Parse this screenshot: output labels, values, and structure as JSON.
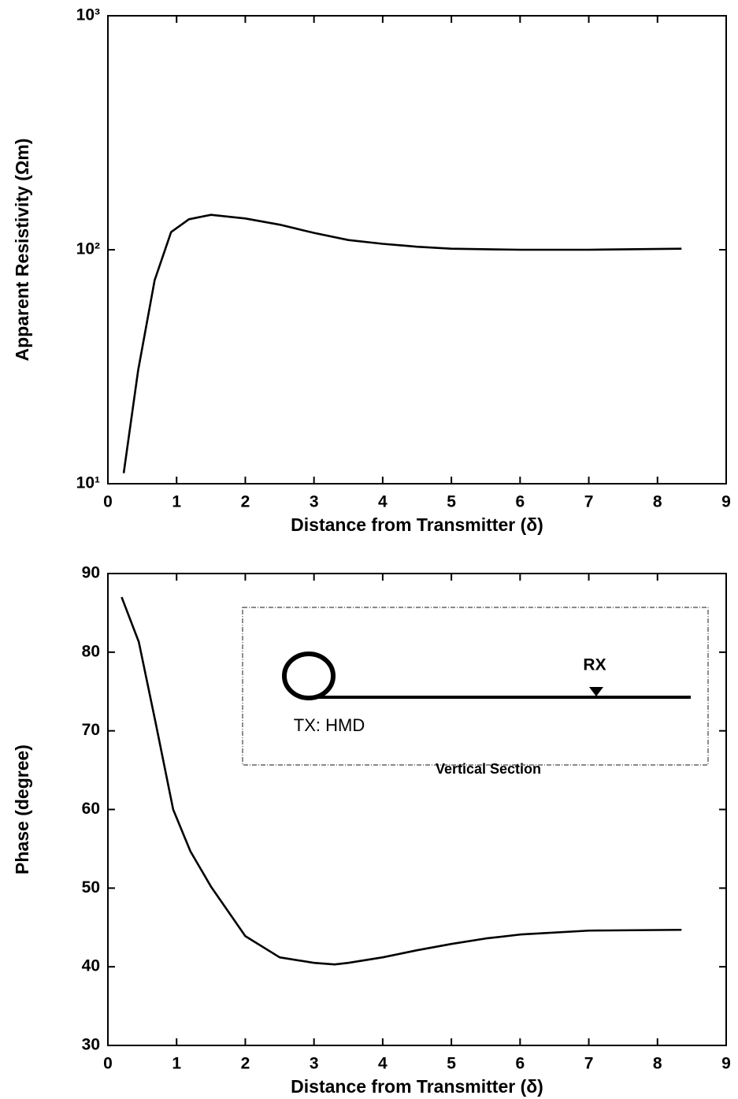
{
  "chart_data": [
    {
      "type": "line",
      "xlabel": "Distance from Transmitter (δ)",
      "ylabel": "Apparent Resistivity (Ωm)",
      "yscale": "log",
      "xlim": [
        0,
        9
      ],
      "xticks": [
        0,
        1,
        2,
        3,
        4,
        5,
        6,
        7,
        8,
        9
      ],
      "ylim": [
        10,
        1000
      ],
      "yticks": [
        {
          "value": 10,
          "label": "10¹"
        },
        {
          "value": 100,
          "label": "10²"
        },
        {
          "value": 1000,
          "label": "10³"
        }
      ],
      "x": [
        0.23,
        0.44,
        0.68,
        0.92,
        1.18,
        1.5,
        2,
        2.5,
        3,
        3.5,
        4,
        4.5,
        5,
        6,
        7,
        8.35
      ],
      "series": [
        {
          "color": "#000000",
          "values": [
            11.1,
            30.5,
            74,
            119,
            135,
            141,
            136,
            128,
            118,
            110,
            106,
            103,
            101,
            100,
            100,
            101
          ]
        }
      ]
    },
    {
      "type": "line",
      "xlabel": "Distance from Transmitter (δ)",
      "ylabel": "Phase (degree)",
      "yscale": "linear",
      "xlim": [
        0,
        9
      ],
      "xticks": [
        0,
        1,
        2,
        3,
        4,
        5,
        6,
        7,
        8,
        9
      ],
      "ylim": [
        30,
        90
      ],
      "yticks": [
        30,
        40,
        50,
        60,
        70,
        80,
        90
      ],
      "x": [
        0.2,
        0.45,
        0.7,
        0.95,
        1.2,
        1.5,
        2,
        2.5,
        3,
        3.3,
        3.5,
        4,
        4.5,
        5,
        5.5,
        6,
        7,
        8.35
      ],
      "series": [
        {
          "color": "#000000",
          "values": [
            87,
            81.3,
            70.8,
            60,
            54.7,
            50.2,
            43.9,
            41.2,
            40.5,
            40.3,
            40.5,
            41.2,
            42.1,
            42.9,
            43.6,
            44.1,
            44.6,
            44.7
          ]
        }
      ],
      "inset": {
        "receiver": "RX",
        "transmitter": "TX: HMD",
        "caption": "Vertical Section"
      }
    }
  ]
}
